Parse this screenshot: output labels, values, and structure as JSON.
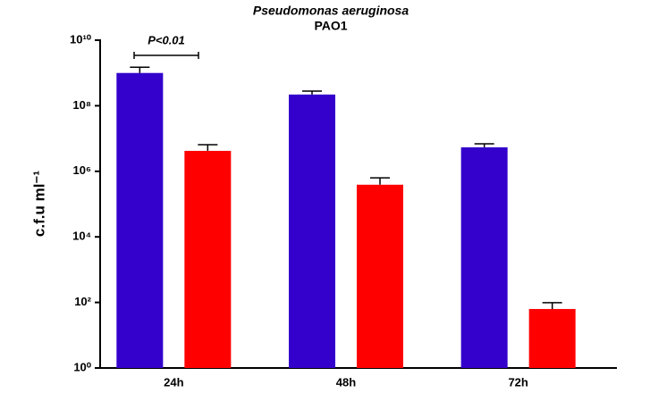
{
  "chart_data": {
    "type": "bar",
    "title": "Pseudomonas aeruginosa",
    "subtitle": "PAO1",
    "y_label": "c.f.u ml⁻¹",
    "categories": [
      "24h",
      "48h",
      "72h"
    ],
    "series": [
      {
        "color": "#3300cc",
        "values": [
          1000000000,
          220000000,
          5400000
        ],
        "errors": [
          500000000,
          60000000,
          1500000
        ]
      },
      {
        "color": "#ff0000",
        "values": [
          4200000,
          390000,
          63
        ],
        "errors": [
          2300000,
          240000,
          35
        ]
      }
    ],
    "log_scale": true,
    "ylim": [
      1,
      10000000000
    ],
    "yticks": [
      {
        "value": 1,
        "label": "10⁰"
      },
      {
        "value": 100,
        "label": "10²"
      },
      {
        "value": 10000,
        "label": "10⁴"
      },
      {
        "value": 1000000,
        "label": "10⁶"
      },
      {
        "value": 100000000,
        "label": "10⁸"
      },
      {
        "value": 10000000000,
        "label": "10¹⁰"
      }
    ],
    "annotation": "P<0.01"
  }
}
